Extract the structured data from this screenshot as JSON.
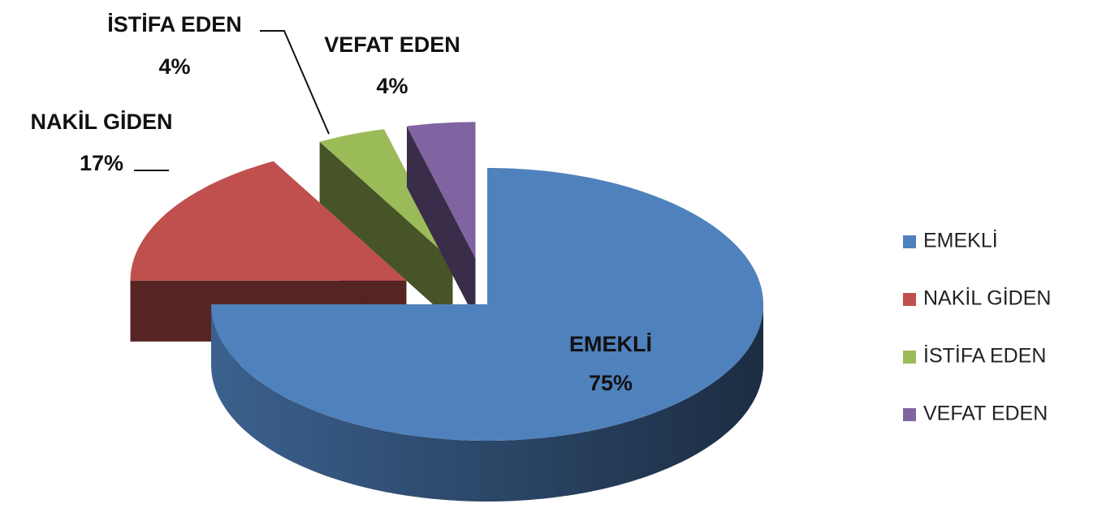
{
  "chart_data": {
    "type": "pie",
    "categories": [
      "EMEKLİ",
      "NAKİL GİDEN",
      "İSTİFA EDEN",
      "VEFAT EDEN"
    ],
    "values": [
      75,
      17,
      4,
      4
    ],
    "value_labels": [
      "75%",
      "17%",
      "4%",
      "4%"
    ],
    "colors": [
      "#4f81bd",
      "#c0504d",
      "#9bbb59",
      "#8064a2"
    ],
    "legend": "right"
  }
}
